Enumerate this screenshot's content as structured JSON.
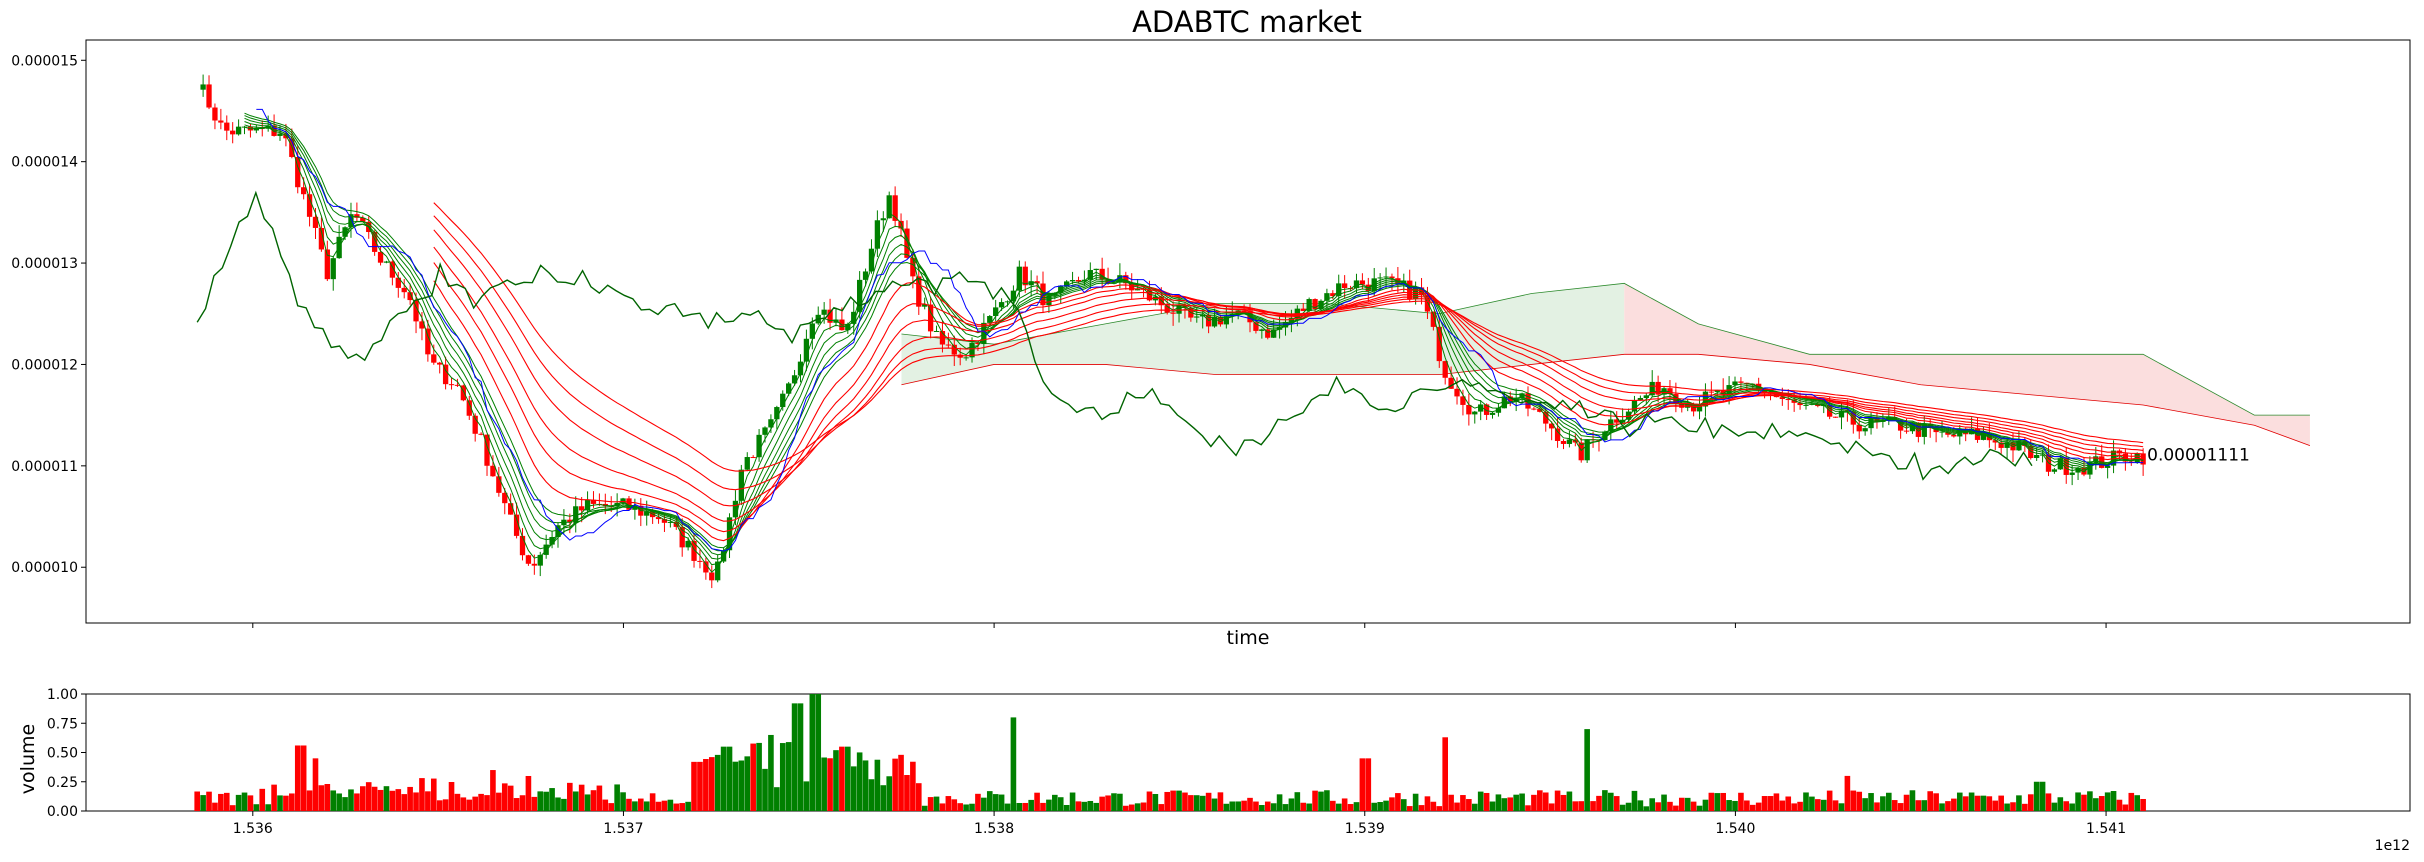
{
  "chart_data": {
    "type": "candlestick",
    "title": "ADABTC market",
    "price_panel": {
      "xlabel": "time",
      "ylabel": "",
      "ylim": [
        9.45e-06,
        1.52e-05
      ],
      "yticks": [
        1e-05,
        1.1e-05,
        1.2e-05,
        1.3e-05,
        1.4e-05,
        1.5e-05
      ],
      "ytick_labels": [
        "0.000010",
        "0.000011",
        "0.000012",
        "0.000013",
        "0.000014",
        "0.000015"
      ],
      "last_price_label": "0.00001111",
      "last_price": 1.111e-05,
      "close_anchors": [
        [
          1535.85,
          1.48e-05
        ],
        [
          1535.92,
          1.43e-05
        ],
        [
          1536.0,
          1.43e-05
        ],
        [
          1536.08,
          1.43e-05
        ],
        [
          1536.15,
          1.35e-05
        ],
        [
          1536.2,
          1.29e-05
        ],
        [
          1536.27,
          1.35e-05
        ],
        [
          1536.35,
          1.3e-05
        ],
        [
          1536.42,
          1.27e-05
        ],
        [
          1536.48,
          1.2e-05
        ],
        [
          1536.55,
          1.18e-05
        ],
        [
          1536.62,
          1.12e-05
        ],
        [
          1536.7,
          1.04e-05
        ],
        [
          1536.75,
          1e-05
        ],
        [
          1536.82,
          1.04e-05
        ],
        [
          1536.9,
          1.06e-05
        ],
        [
          1537.0,
          1.06e-05
        ],
        [
          1537.1,
          1.05e-05
        ],
        [
          1537.2,
          1.01e-05
        ],
        [
          1537.25,
          9.9e-06
        ],
        [
          1537.32,
          1.1e-05
        ],
        [
          1537.4,
          1.14e-05
        ],
        [
          1537.45,
          1.18e-05
        ],
        [
          1537.52,
          1.26e-05
        ],
        [
          1537.6,
          1.23e-05
        ],
        [
          1537.68,
          1.33e-05
        ],
        [
          1537.72,
          1.37e-05
        ],
        [
          1537.78,
          1.28e-05
        ],
        [
          1537.85,
          1.22e-05
        ],
        [
          1537.92,
          1.21e-05
        ],
        [
          1538.0,
          1.25e-05
        ],
        [
          1538.07,
          1.29e-05
        ],
        [
          1538.15,
          1.26e-05
        ],
        [
          1538.25,
          1.29e-05
        ],
        [
          1538.35,
          1.28e-05
        ],
        [
          1538.45,
          1.26e-05
        ],
        [
          1538.55,
          1.24e-05
        ],
        [
          1538.65,
          1.25e-05
        ],
        [
          1538.75,
          1.23e-05
        ],
        [
          1538.85,
          1.26e-05
        ],
        [
          1538.95,
          1.28e-05
        ],
        [
          1539.05,
          1.28e-05
        ],
        [
          1539.15,
          1.27e-05
        ],
        [
          1539.22,
          1.19e-05
        ],
        [
          1539.3,
          1.15e-05
        ],
        [
          1539.4,
          1.17e-05
        ],
        [
          1539.5,
          1.14e-05
        ],
        [
          1539.58,
          1.11e-05
        ],
        [
          1539.65,
          1.14e-05
        ],
        [
          1539.72,
          1.16e-05
        ],
        [
          1539.8,
          1.18e-05
        ],
        [
          1539.88,
          1.16e-05
        ],
        [
          1539.95,
          1.17e-05
        ],
        [
          1540.05,
          1.18e-05
        ],
        [
          1540.15,
          1.16e-05
        ],
        [
          1540.25,
          1.15e-05
        ],
        [
          1540.35,
          1.14e-05
        ],
        [
          1540.45,
          1.14e-05
        ],
        [
          1540.55,
          1.13e-05
        ],
        [
          1540.65,
          1.13e-05
        ],
        [
          1540.75,
          1.12e-05
        ],
        [
          1540.85,
          1.1e-05
        ],
        [
          1540.95,
          1.1e-05
        ],
        [
          1541.05,
          1.11e-05
        ],
        [
          1541.1,
          1.11e-05
        ]
      ],
      "ichimoku_cloud": [
        [
          1537.75,
          1.23e-05,
          1.18e-05
        ],
        [
          1538.0,
          1.22e-05,
          1.2e-05
        ],
        [
          1538.3,
          1.24e-05,
          1.2e-05
        ],
        [
          1538.6,
          1.26e-05,
          1.19e-05
        ],
        [
          1538.9,
          1.26e-05,
          1.19e-05
        ],
        [
          1539.2,
          1.25e-05,
          1.19e-05
        ],
        [
          1539.45,
          1.27e-05,
          1.2e-05
        ],
        [
          1539.7,
          1.28e-05,
          1.21e-05
        ],
        [
          1539.9,
          1.24e-05,
          1.21e-05
        ],
        [
          1540.2,
          1.21e-05,
          1.2e-05
        ],
        [
          1540.5,
          1.21e-05,
          1.18e-05
        ],
        [
          1540.8,
          1.21e-05,
          1.17e-05
        ],
        [
          1541.1,
          1.21e-05,
          1.16e-05
        ],
        [
          1541.4,
          1.15e-05,
          1.14e-05
        ],
        [
          1541.55,
          1.15e-05,
          1.12e-05
        ]
      ]
    },
    "volume_panel": {
      "ylabel": "volume",
      "ylim": [
        0,
        1.0
      ],
      "yticks": [
        0.0,
        0.25,
        0.5,
        0.75,
        1.0
      ],
      "ytick_labels": [
        "0.00",
        "0.25",
        "0.50",
        "0.75",
        "1.00"
      ],
      "x_tick_values": [
        1536,
        1537,
        1538,
        1539,
        1540,
        1541
      ],
      "x_tick_labels": [
        "1.536",
        "1.537",
        "1.538",
        "1.539",
        "1.540",
        "1.541"
      ],
      "x_offset_label": "1e12",
      "spikes": [
        [
          1536.13,
          0.56
        ],
        [
          1536.17,
          0.45
        ],
        [
          1536.65,
          0.35
        ],
        [
          1537.2,
          0.42
        ],
        [
          1537.28,
          0.55
        ],
        [
          1537.4,
          0.65
        ],
        [
          1537.47,
          0.92
        ],
        [
          1537.52,
          1.0
        ],
        [
          1537.6,
          0.55
        ],
        [
          1537.75,
          0.48
        ],
        [
          1538.05,
          0.8
        ],
        [
          1539.0,
          0.45
        ],
        [
          1539.22,
          0.63
        ],
        [
          1539.6,
          0.7
        ],
        [
          1540.3,
          0.3
        ],
        [
          1540.82,
          0.25
        ]
      ]
    },
    "x_range": [
      1535.55,
      1541.82
    ],
    "colors": {
      "up": "#008000",
      "down": "#ff0000",
      "tenkan": "#0000ff",
      "lagging": "#006400",
      "cloud_bull": "#e3f1e3",
      "cloud_bear": "#fbdede"
    }
  }
}
